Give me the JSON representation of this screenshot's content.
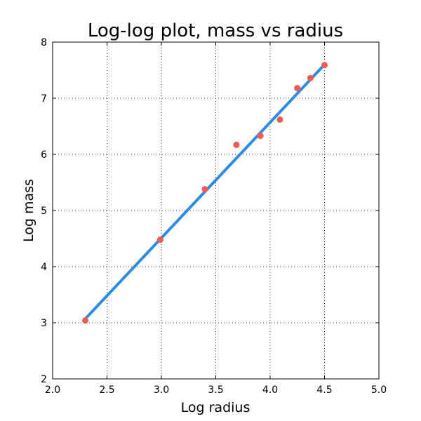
{
  "chart_data": {
    "type": "scatter",
    "title": "Log-log plot, mass vs radius",
    "xlabel": "Log radius",
    "ylabel": "Log mass",
    "xlim": [
      2.0,
      5.0
    ],
    "ylim": [
      2,
      8
    ],
    "x_ticks": [
      "2.0",
      "2.5",
      "3.0",
      "3.5",
      "4.0",
      "4.5",
      "5.0"
    ],
    "y_ticks": [
      "2",
      "3",
      "4",
      "5",
      "6",
      "7",
      "8"
    ],
    "grid": true,
    "points": {
      "x": [
        2.3,
        2.99,
        3.4,
        3.69,
        3.91,
        4.09,
        4.25,
        4.37,
        4.5
      ],
      "y": [
        3.04,
        4.48,
        5.38,
        6.17,
        6.33,
        6.62,
        7.18,
        7.36,
        7.59
      ],
      "color": "#f45b4f"
    },
    "fit_line": {
      "x": [
        2.3,
        4.5
      ],
      "y": [
        3.07,
        7.6
      ],
      "color": "#2b8ce8"
    }
  }
}
